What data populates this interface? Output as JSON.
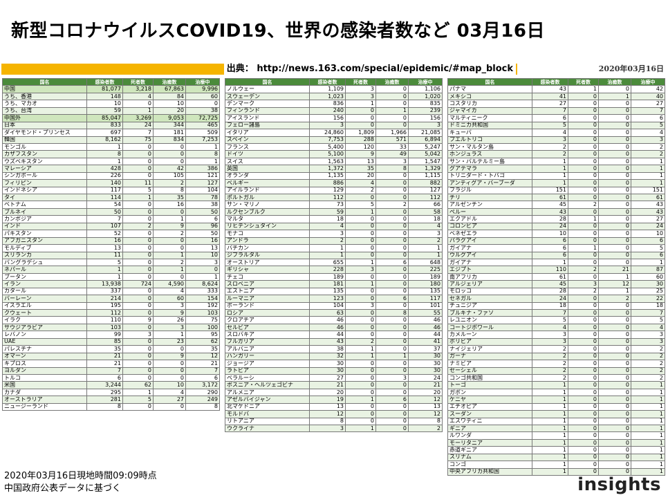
{
  "title": "新型コロナウイルスCOVID19、世界の感染者数など 03月16日",
  "source": "出典： http://news.163.com/special/epidemic/#map_block",
  "date": "2020年03月16日",
  "headers": [
    "国名",
    "感染者数",
    "死者数",
    "治癒数",
    "治療中"
  ],
  "tables": [
    [
      [
        "中国",
        "81,077",
        "3,218",
        "67,863",
        "9,996"
      ],
      [
        "うち、香港",
        "148",
        "4",
        "84",
        "60"
      ],
      [
        "うち、マカオ",
        "10",
        "0",
        "10",
        "0"
      ],
      [
        "うち、台湾",
        "59",
        "1",
        "20",
        "38"
      ],
      [
        "中国外",
        "85,047",
        "3,269",
        "9,053",
        "72,725"
      ],
      [
        "日本",
        "833",
        "24",
        "344",
        "465"
      ],
      [
        "ダイヤモンド・プリンセス",
        "697",
        "7",
        "181",
        "509"
      ],
      [
        "韓国",
        "8,162",
        "75",
        "834",
        "7,253"
      ],
      [
        "モンゴル",
        "1",
        "0",
        "0",
        "1"
      ],
      [
        "カザフスタン",
        "8",
        "0",
        "0",
        "8"
      ],
      [
        "ウズベキスタン",
        "1",
        "0",
        "0",
        "1"
      ],
      [
        "マレーシア",
        "428",
        "0",
        "42",
        "386"
      ],
      [
        "シンガポール",
        "226",
        "0",
        "105",
        "121"
      ],
      [
        "フィリピン",
        "140",
        "11",
        "2",
        "127"
      ],
      [
        "インドネシア",
        "117",
        "5",
        "8",
        "104"
      ],
      [
        "タイ",
        "114",
        "1",
        "35",
        "78"
      ],
      [
        "ベトナム",
        "54",
        "0",
        "16",
        "38"
      ],
      [
        "ブルネイ",
        "50",
        "0",
        "0",
        "50"
      ],
      [
        "カンボジア",
        "7",
        "0",
        "1",
        "6"
      ],
      [
        "インド",
        "107",
        "2",
        "9",
        "96"
      ],
      [
        "パキスタン",
        "52",
        "0",
        "2",
        "50"
      ],
      [
        "アフガニスタン",
        "16",
        "0",
        "0",
        "16"
      ],
      [
        "モルディブ",
        "13",
        "0",
        "0",
        "13"
      ],
      [
        "スリランカ",
        "11",
        "0",
        "1",
        "10"
      ],
      [
        "バングラデシュ",
        "5",
        "0",
        "2",
        "3"
      ],
      [
        "ネパール",
        "1",
        "0",
        "1",
        "0"
      ],
      [
        "ブータン",
        "1",
        "0",
        "0",
        "1"
      ],
      [
        "イラン",
        "13,938",
        "724",
        "4,590",
        "8,624"
      ],
      [
        "カタール",
        "337",
        "0",
        "4",
        "333"
      ],
      [
        "バーレーン",
        "214",
        "0",
        "60",
        "154"
      ],
      [
        "イスラエル",
        "195",
        "0",
        "3",
        "192"
      ],
      [
        "クウェート",
        "112",
        "0",
        "9",
        "103"
      ],
      [
        "イラク",
        "110",
        "9",
        "26",
        "75"
      ],
      [
        "サウジアラビア",
        "103",
        "0",
        "3",
        "100"
      ],
      [
        "レバノン",
        "99",
        "3",
        "1",
        "95"
      ],
      [
        "UAE",
        "85",
        "0",
        "23",
        "62"
      ],
      [
        "パレスチナ",
        "35",
        "0",
        "0",
        "35"
      ],
      [
        "オマーン",
        "21",
        "0",
        "9",
        "12"
      ],
      [
        "キプロス",
        "21",
        "0",
        "0",
        "21"
      ],
      [
        "ヨルダン",
        "7",
        "0",
        "0",
        "7"
      ],
      [
        "トルコ",
        "6",
        "0",
        "0",
        "6"
      ],
      [
        "米国",
        "3,244",
        "62",
        "10",
        "3,172"
      ],
      [
        "カナダ",
        "295",
        "1",
        "4",
        "290"
      ],
      [
        "オーストラリア",
        "281",
        "5",
        "27",
        "249"
      ],
      [
        "ニュージーランド",
        "8",
        "0",
        "0",
        "8"
      ]
    ],
    [
      [
        "ノルウェー",
        "1,109",
        "3",
        "0",
        "1,106"
      ],
      [
        "スウェーデン",
        "1,023",
        "3",
        "0",
        "1,020"
      ],
      [
        "デンマーク",
        "836",
        "1",
        "0",
        "835"
      ],
      [
        "フィンランド",
        "240",
        "0",
        "1",
        "239"
      ],
      [
        "アイスランド",
        "156",
        "0",
        "0",
        "156"
      ],
      [
        "フェロー諸島",
        "3",
        "0",
        "0",
        "3"
      ],
      [
        "イタリア",
        "24,860",
        "1,809",
        "1,966",
        "21,085"
      ],
      [
        "スペイン",
        "7,753",
        "288",
        "571",
        "6,894"
      ],
      [
        "フランス",
        "5,400",
        "120",
        "33",
        "5,247"
      ],
      [
        "ドイツ",
        "5,100",
        "9",
        "49",
        "5,042"
      ],
      [
        "スイス",
        "1,563",
        "13",
        "3",
        "1,547"
      ],
      [
        "英国",
        "1,372",
        "35",
        "8",
        "1,329"
      ],
      [
        "オランダ",
        "1,135",
        "20",
        "0",
        "1,115"
      ],
      [
        "ベルギー",
        "886",
        "4",
        "0",
        "882"
      ],
      [
        "アイルランド",
        "129",
        "2",
        "0",
        "127"
      ],
      [
        "ポルトガル",
        "112",
        "0",
        "0",
        "112"
      ],
      [
        "サン・マリノ",
        "73",
        "5",
        "2",
        "66"
      ],
      [
        "ルクセンブルク",
        "59",
        "1",
        "0",
        "58"
      ],
      [
        "マルタ",
        "18",
        "0",
        "0",
        "18"
      ],
      [
        "リヒテンシュタイン",
        "4",
        "0",
        "0",
        "4"
      ],
      [
        "モナコ",
        "3",
        "0",
        "0",
        "3"
      ],
      [
        "アンドラ",
        "2",
        "0",
        "0",
        "2"
      ],
      [
        "バチカン",
        "1",
        "0",
        "0",
        "1"
      ],
      [
        "ジブラルタル",
        "1",
        "0",
        "0",
        "1"
      ],
      [
        "オーストリア",
        "655",
        "1",
        "6",
        "648"
      ],
      [
        "ギリシャ",
        "228",
        "3",
        "0",
        "225"
      ],
      [
        "チェコ",
        "189",
        "0",
        "0",
        "189"
      ],
      [
        "スロベニア",
        "181",
        "1",
        "0",
        "180"
      ],
      [
        "エストニア",
        "135",
        "0",
        "0",
        "135"
      ],
      [
        "ルーマニア",
        "123",
        "0",
        "6",
        "117"
      ],
      [
        "ポーランド",
        "104",
        "3",
        "0",
        "101"
      ],
      [
        "ロシア",
        "63",
        "0",
        "8",
        "55"
      ],
      [
        "クロアチア",
        "46",
        "0",
        "0",
        "46"
      ],
      [
        "セルビア",
        "46",
        "0",
        "0",
        "46"
      ],
      [
        "スロバキア",
        "44",
        "0",
        "0",
        "44"
      ],
      [
        "ブルガリア",
        "43",
        "2",
        "0",
        "41"
      ],
      [
        "アルバニア",
        "38",
        "1",
        "0",
        "37"
      ],
      [
        "ハンガリー",
        "32",
        "1",
        "1",
        "30"
      ],
      [
        "ジョージア",
        "30",
        "0",
        "0",
        "30"
      ],
      [
        "ラトビア",
        "30",
        "0",
        "0",
        "30"
      ],
      [
        "ベラルーシ",
        "27",
        "0",
        "3",
        "24"
      ],
      [
        "ボスニア・ヘルツェゴビナ",
        "21",
        "0",
        "0",
        "21"
      ],
      [
        "アルメニア",
        "20",
        "0",
        "0",
        "20"
      ],
      [
        "アゼルバイジャン",
        "19",
        "1",
        "6",
        "12"
      ],
      [
        "北マケドニア",
        "13",
        "0",
        "0",
        "13"
      ],
      [
        "モルドバ",
        "12",
        "0",
        "0",
        "12"
      ],
      [
        "リトアニア",
        "8",
        "0",
        "0",
        "8"
      ],
      [
        "ウクライナ",
        "3",
        "1",
        "0",
        "2"
      ]
    ],
    [
      [
        "パナマ",
        "43",
        "1",
        "0",
        "42"
      ],
      [
        "メキシコ",
        "41",
        "0",
        "1",
        "40"
      ],
      [
        "コスタリカ",
        "27",
        "0",
        "0",
        "27"
      ],
      [
        "ジャマイカ",
        "7",
        "0",
        "0",
        "7"
      ],
      [
        "マルティニーク",
        "6",
        "0",
        "0",
        "6"
      ],
      [
        "ドミニカ共和国",
        "5",
        "0",
        "0",
        "5"
      ],
      [
        "キューバ",
        "4",
        "0",
        "0",
        "4"
      ],
      [
        "プエルトリコ",
        "3",
        "0",
        "0",
        "3"
      ],
      [
        "サン・マルタン島",
        "2",
        "0",
        "0",
        "2"
      ],
      [
        "ホンジュラス",
        "2",
        "0",
        "0",
        "2"
      ],
      [
        "サン・バルテルミー島",
        "1",
        "0",
        "0",
        "1"
      ],
      [
        "グアテマラ",
        "1",
        "0",
        "0",
        "1"
      ],
      [
        "トリニダード・トバゴ",
        "1",
        "0",
        "0",
        "1"
      ],
      [
        "アンティグア・バーブーダ",
        "1",
        "0",
        "0",
        "1"
      ],
      [
        "ブラジル",
        "151",
        "0",
        "0",
        "151"
      ],
      [
        "チリ",
        "61",
        "0",
        "0",
        "61"
      ],
      [
        "アルゼンチン",
        "45",
        "2",
        "0",
        "43"
      ],
      [
        "ペルー",
        "43",
        "0",
        "0",
        "43"
      ],
      [
        "エクアドル",
        "28",
        "1",
        "0",
        "27"
      ],
      [
        "コロンビア",
        "24",
        "0",
        "0",
        "24"
      ],
      [
        "ベネゼエラ",
        "10",
        "0",
        "0",
        "10"
      ],
      [
        "パラグアイ",
        "6",
        "0",
        "0",
        "6"
      ],
      [
        "ガイアナ",
        "6",
        "1",
        "0",
        "5"
      ],
      [
        "ウルグアイ",
        "6",
        "0",
        "0",
        "6"
      ],
      [
        "ガイアナ",
        "1",
        "0",
        "0",
        "1"
      ],
      [
        "エジプト",
        "110",
        "2",
        "21",
        "87"
      ],
      [
        "南アフリカ",
        "61",
        "0",
        "1",
        "60"
      ],
      [
        "アルジェリア",
        "45",
        "3",
        "12",
        "30"
      ],
      [
        "モロッコ",
        "28",
        "2",
        "1",
        "25"
      ],
      [
        "セネガル",
        "24",
        "0",
        "2",
        "22"
      ],
      [
        "チュニジア",
        "18",
        "0",
        "0",
        "18"
      ],
      [
        "ブルキナ・ファソ",
        "7",
        "0",
        "0",
        "7"
      ],
      [
        "レユニオン",
        "5",
        "0",
        "0",
        "5"
      ],
      [
        "コートジボワール",
        "4",
        "0",
        "0",
        "4"
      ],
      [
        "カメルーン",
        "3",
        "0",
        "0",
        "3"
      ],
      [
        "ボリビア",
        "3",
        "0",
        "0",
        "3"
      ],
      [
        "ナイジェリア",
        "2",
        "0",
        "0",
        "2"
      ],
      [
        "ガーナ",
        "2",
        "0",
        "0",
        "2"
      ],
      [
        "ナミビア",
        "2",
        "0",
        "0",
        "2"
      ],
      [
        "セーシェル",
        "2",
        "0",
        "0",
        "2"
      ],
      [
        "コンゴ共和国",
        "2",
        "0",
        "0",
        "2"
      ],
      [
        "トーゴ",
        "1",
        "0",
        "0",
        "1"
      ],
      [
        "ガボン",
        "1",
        "0",
        "0",
        "1"
      ],
      [
        "ケニヤ",
        "1",
        "0",
        "0",
        "1"
      ],
      [
        "エチオピア",
        "1",
        "0",
        "0",
        "1"
      ],
      [
        "スーダン",
        "1",
        "0",
        "0",
        "1"
      ],
      [
        "エスワティニ",
        "1",
        "0",
        "0",
        "1"
      ],
      [
        "ギニア",
        "1",
        "0",
        "0",
        "1"
      ],
      [
        "ルワンダ",
        "1",
        "0",
        "0",
        "1"
      ],
      [
        "モーリタニア",
        "1",
        "0",
        "0",
        "1"
      ],
      [
        "赤道ギニア",
        "1",
        "0",
        "0",
        "1"
      ],
      [
        "スリナム",
        "1",
        "0",
        "0",
        "1"
      ],
      [
        "コンゴ",
        "1",
        "0",
        "0",
        "1"
      ],
      [
        "中央アフリカ共和国",
        "1",
        "0",
        "0",
        "1"
      ]
    ]
  ],
  "footer": {
    "line1": "2020年03月16日現地時間09:09時点",
    "line2": "中国政府公表データに基づく"
  },
  "logo": {
    "text": "insights",
    "accent_color": "#f5b400"
  }
}
